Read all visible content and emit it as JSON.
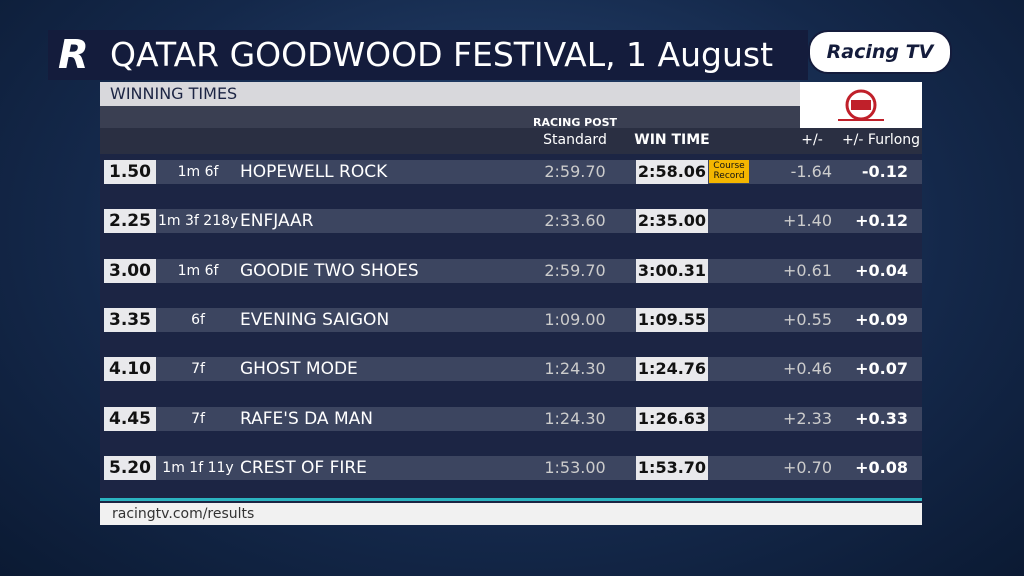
{
  "header": {
    "title": "QATAR GOODWOOD FESTIVAL, 1 August",
    "brand": "Racing TV"
  },
  "table": {
    "title": "WINNING TIMES",
    "sponsor": "RACING POST",
    "columns": {
      "standard": "Standard",
      "win_time": "WIN TIME",
      "diff": "+/-",
      "furlong": "+/- Furlong"
    },
    "badge": "Course Record",
    "rows": [
      {
        "time": "1.50",
        "distance": "1m 6f",
        "horse": "HOPEWELL ROCK",
        "standard": "2:59.70",
        "win": "2:58.06",
        "diff": "-1.64",
        "furlong": "-0.12",
        "record": true
      },
      {
        "time": "2.25",
        "distance": "1m 3f 218y",
        "horse": "ENFJAAR",
        "standard": "2:33.60",
        "win": "2:35.00",
        "diff": "+1.40",
        "furlong": "+0.12"
      },
      {
        "time": "3.00",
        "distance": "1m 6f",
        "horse": "GOODIE TWO SHOES",
        "standard": "2:59.70",
        "win": "3:00.31",
        "diff": "+0.61",
        "furlong": "+0.04"
      },
      {
        "time": "3.35",
        "distance": "6f",
        "horse": "EVENING SAIGON",
        "standard": "1:09.00",
        "win": "1:09.55",
        "diff": "+0.55",
        "furlong": "+0.09"
      },
      {
        "time": "4.10",
        "distance": "7f",
        "horse": "GHOST MODE",
        "standard": "1:24.30",
        "win": "1:24.76",
        "diff": "+0.46",
        "furlong": "+0.07"
      },
      {
        "time": "4.45",
        "distance": "7f",
        "horse": "RAFE'S DA MAN",
        "standard": "1:24.30",
        "win": "1:26.63",
        "diff": "+2.33",
        "furlong": "+0.33"
      },
      {
        "time": "5.20",
        "distance": "1m 1f 11y",
        "horse": "CREST OF FIRE",
        "standard": "1:53.00",
        "win": "1:53.70",
        "diff": "+0.70",
        "furlong": "+0.08"
      }
    ]
  },
  "footer": {
    "url": "racingtv.com/results"
  }
}
